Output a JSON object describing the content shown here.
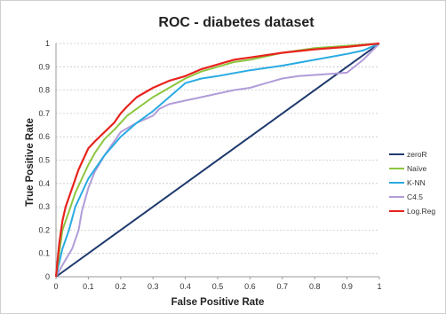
{
  "chart_data": {
    "type": "line",
    "title": "ROC - diabetes dataset",
    "xlabel": "False Positive Rate",
    "ylabel": "True Positive Rate",
    "xlim": [
      0,
      1
    ],
    "ylim": [
      0,
      1
    ],
    "x_ticks": [
      "0",
      "0.1",
      "0.2",
      "0.3",
      "0.4",
      "0.5",
      "0.6",
      "0.7",
      "0.8",
      "0.9",
      "1"
    ],
    "y_ticks": [
      "0",
      "0.1",
      "0.2",
      "0.3",
      "0.4",
      "0.5",
      "0.6",
      "0.7",
      "0.8",
      "0.9",
      "1"
    ],
    "grid": "horizontal dashed",
    "legend_position": "right",
    "series": [
      {
        "name": "zeroR",
        "color": "#1f3a6e",
        "points": [
          [
            0,
            0
          ],
          [
            1,
            1
          ]
        ]
      },
      {
        "name": "Naïve",
        "color": "#8cc63f",
        "points": [
          [
            0,
            0
          ],
          [
            0.01,
            0.1
          ],
          [
            0.02,
            0.2
          ],
          [
            0.04,
            0.28
          ],
          [
            0.06,
            0.36
          ],
          [
            0.08,
            0.42
          ],
          [
            0.1,
            0.48
          ],
          [
            0.12,
            0.53
          ],
          [
            0.15,
            0.59
          ],
          [
            0.18,
            0.63
          ],
          [
            0.2,
            0.66
          ],
          [
            0.22,
            0.69
          ],
          [
            0.25,
            0.72
          ],
          [
            0.3,
            0.77
          ],
          [
            0.35,
            0.81
          ],
          [
            0.4,
            0.85
          ],
          [
            0.45,
            0.88
          ],
          [
            0.5,
            0.9
          ],
          [
            0.55,
            0.92
          ],
          [
            0.6,
            0.93
          ],
          [
            0.7,
            0.96
          ],
          [
            0.8,
            0.98
          ],
          [
            0.9,
            0.99
          ],
          [
            1,
            1
          ]
        ]
      },
      {
        "name": "K-NN",
        "color": "#29abe2",
        "points": [
          [
            0,
            0
          ],
          [
            0.02,
            0.12
          ],
          [
            0.04,
            0.2
          ],
          [
            0.06,
            0.3
          ],
          [
            0.1,
            0.42
          ],
          [
            0.15,
            0.52
          ],
          [
            0.2,
            0.6
          ],
          [
            0.25,
            0.66
          ],
          [
            0.3,
            0.71
          ],
          [
            0.35,
            0.77
          ],
          [
            0.4,
            0.83
          ],
          [
            0.45,
            0.85
          ],
          [
            0.5,
            0.86
          ],
          [
            0.6,
            0.885
          ],
          [
            0.7,
            0.905
          ],
          [
            0.8,
            0.93
          ],
          [
            0.9,
            0.955
          ],
          [
            0.95,
            0.97
          ],
          [
            1,
            1
          ]
        ]
      },
      {
        "name": "C4.5",
        "color": "#b19cd9",
        "points": [
          [
            0,
            0
          ],
          [
            0.02,
            0.05
          ],
          [
            0.05,
            0.12
          ],
          [
            0.07,
            0.2
          ],
          [
            0.08,
            0.28
          ],
          [
            0.1,
            0.38
          ],
          [
            0.12,
            0.45
          ],
          [
            0.15,
            0.52
          ],
          [
            0.18,
            0.58
          ],
          [
            0.2,
            0.62
          ],
          [
            0.25,
            0.66
          ],
          [
            0.3,
            0.69
          ],
          [
            0.32,
            0.72
          ],
          [
            0.35,
            0.74
          ],
          [
            0.4,
            0.755
          ],
          [
            0.45,
            0.77
          ],
          [
            0.5,
            0.785
          ],
          [
            0.55,
            0.8
          ],
          [
            0.6,
            0.81
          ],
          [
            0.65,
            0.83
          ],
          [
            0.7,
            0.85
          ],
          [
            0.75,
            0.86
          ],
          [
            0.8,
            0.865
          ],
          [
            0.85,
            0.87
          ],
          [
            0.9,
            0.875
          ],
          [
            0.95,
            0.93
          ],
          [
            1,
            1
          ]
        ]
      },
      {
        "name": "Log.Reg",
        "color": "#e8231e",
        "points": [
          [
            0,
            0
          ],
          [
            0.01,
            0.14
          ],
          [
            0.02,
            0.24
          ],
          [
            0.03,
            0.3
          ],
          [
            0.05,
            0.38
          ],
          [
            0.07,
            0.46
          ],
          [
            0.1,
            0.55
          ],
          [
            0.12,
            0.58
          ],
          [
            0.15,
            0.62
          ],
          [
            0.18,
            0.66
          ],
          [
            0.2,
            0.7
          ],
          [
            0.22,
            0.73
          ],
          [
            0.25,
            0.77
          ],
          [
            0.3,
            0.81
          ],
          [
            0.35,
            0.84
          ],
          [
            0.4,
            0.86
          ],
          [
            0.45,
            0.89
          ],
          [
            0.5,
            0.91
          ],
          [
            0.55,
            0.93
          ],
          [
            0.6,
            0.94
          ],
          [
            0.7,
            0.96
          ],
          [
            0.8,
            0.975
          ],
          [
            0.9,
            0.985
          ],
          [
            1,
            1
          ]
        ]
      }
    ]
  }
}
